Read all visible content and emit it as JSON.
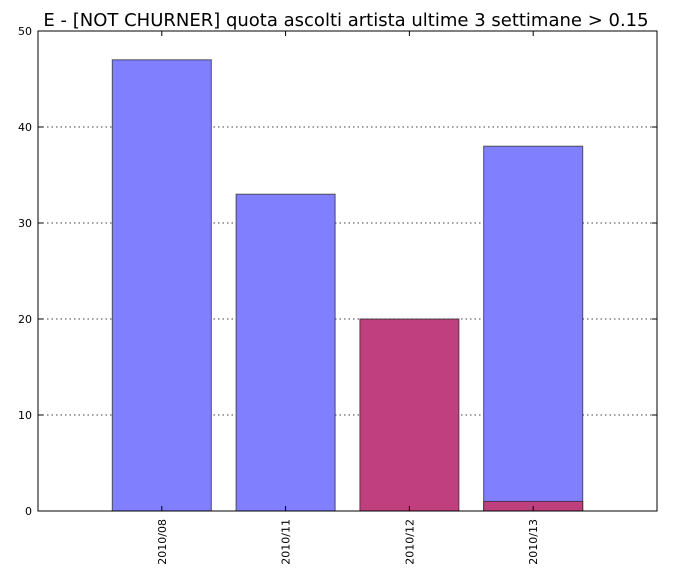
{
  "chart_data": {
    "type": "bar",
    "title": "E - [NOT CHURNER] quota ascolti artista ultime 3 settimane > 0.15",
    "xlabel": "",
    "ylabel": "",
    "categories": [
      "2010/08",
      "2010/11",
      "2010/12",
      "2010/13"
    ],
    "ylim": [
      0,
      50
    ],
    "yticks": [
      0,
      10,
      20,
      30,
      40,
      50
    ],
    "grid": "y-dotted",
    "series": [
      {
        "values": [
          47,
          33,
          0,
          38
        ],
        "color": "#8080ff"
      },
      {
        "values": [
          0,
          0,
          20,
          1
        ],
        "color": "#bf3f7f"
      }
    ]
  }
}
